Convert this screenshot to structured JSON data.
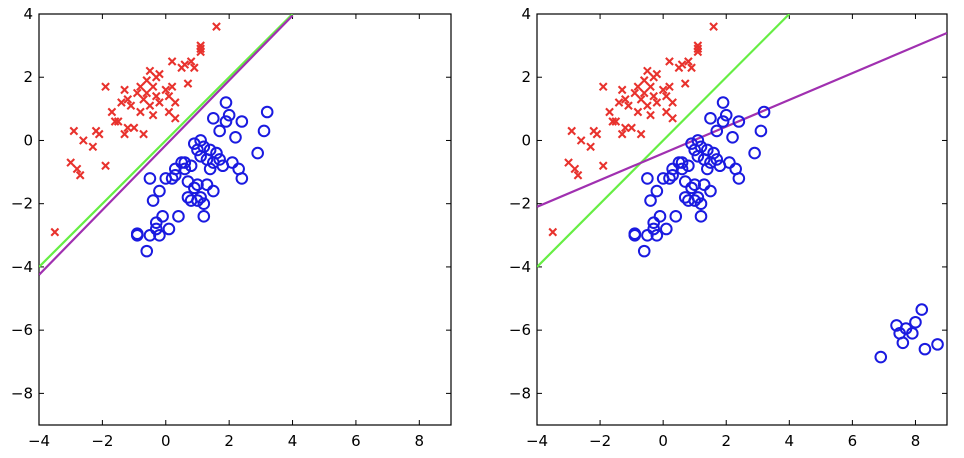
{
  "chart_data": [
    {
      "type": "scatter",
      "xlim": [
        -4,
        9
      ],
      "ylim": [
        -9,
        4
      ],
      "xticks": [
        -4,
        -2,
        0,
        2,
        4,
        6,
        8
      ],
      "yticks": [
        -8,
        -6,
        -4,
        -2,
        0,
        2,
        4
      ],
      "xtick_labels": [
        "−4",
        "−2",
        "0",
        "2",
        "4",
        "6",
        "8"
      ],
      "ytick_labels": [
        "−8",
        "−6",
        "−4",
        "−2",
        "0",
        "2",
        "4"
      ],
      "grid": false,
      "colors": {
        "class_a": "#e8322d",
        "class_b": "#1a1ae0",
        "green_line": "#66ee44",
        "purple_line": "#a030b0"
      },
      "series": [
        {
          "marker": "x",
          "color": "#e8322d",
          "points": [
            [
              -3.5,
              -2.9
            ],
            [
              -3.0,
              -0.7
            ],
            [
              -2.9,
              0.3
            ],
            [
              -2.8,
              -0.9
            ],
            [
              -2.7,
              -1.1
            ],
            [
              -2.6,
              0.0
            ],
            [
              -2.3,
              -0.2
            ],
            [
              -2.2,
              0.3
            ],
            [
              -2.1,
              0.2
            ],
            [
              -1.9,
              1.7
            ],
            [
              -1.9,
              -0.8
            ],
            [
              -1.7,
              0.9
            ],
            [
              -1.6,
              0.6
            ],
            [
              -1.5,
              0.6
            ],
            [
              -1.4,
              1.2
            ],
            [
              -1.3,
              1.6
            ],
            [
              -1.3,
              0.2
            ],
            [
              -1.2,
              1.3
            ],
            [
              -1.2,
              0.4
            ],
            [
              -1.1,
              1.1
            ],
            [
              -1.0,
              0.4
            ],
            [
              -0.9,
              1.5
            ],
            [
              -0.8,
              1.7
            ],
            [
              -0.8,
              0.9
            ],
            [
              -0.7,
              1.3
            ],
            [
              -0.7,
              0.2
            ],
            [
              -0.6,
              1.9
            ],
            [
              -0.6,
              1.5
            ],
            [
              -0.5,
              2.2
            ],
            [
              -0.5,
              1.1
            ],
            [
              -0.4,
              1.7
            ],
            [
              -0.4,
              0.8
            ],
            [
              -0.3,
              2.0
            ],
            [
              -0.3,
              1.4
            ],
            [
              -0.2,
              2.1
            ],
            [
              -0.2,
              1.2
            ],
            [
              0.0,
              1.6
            ],
            [
              0.1,
              1.4
            ],
            [
              0.1,
              0.9
            ],
            [
              0.2,
              2.5
            ],
            [
              0.2,
              1.7
            ],
            [
              0.3,
              1.2
            ],
            [
              0.3,
              0.7
            ],
            [
              0.5,
              2.3
            ],
            [
              0.6,
              2.4
            ],
            [
              0.7,
              1.8
            ],
            [
              0.8,
              2.5
            ],
            [
              0.9,
              2.3
            ],
            [
              1.1,
              3.0
            ],
            [
              1.1,
              2.9
            ],
            [
              1.1,
              2.8
            ],
            [
              1.6,
              3.6
            ]
          ]
        },
        {
          "marker": "circle",
          "color": "#1a1ae0",
          "points": [
            [
              -0.9,
              -3.0
            ],
            [
              -0.9,
              -2.95
            ],
            [
              -0.6,
              -3.5
            ],
            [
              -0.5,
              -1.2
            ],
            [
              -0.5,
              -3.0
            ],
            [
              -0.4,
              -1.9
            ],
            [
              -0.3,
              -2.6
            ],
            [
              -0.3,
              -2.8
            ],
            [
              -0.2,
              -1.6
            ],
            [
              -0.2,
              -3.0
            ],
            [
              -0.1,
              -2.4
            ],
            [
              0.0,
              -1.2
            ],
            [
              0.1,
              -2.8
            ],
            [
              0.2,
              -1.2
            ],
            [
              0.3,
              -1.1
            ],
            [
              0.3,
              -0.9
            ],
            [
              0.4,
              -2.4
            ],
            [
              0.5,
              -0.7
            ],
            [
              0.6,
              -0.7
            ],
            [
              0.6,
              -0.9
            ],
            [
              0.7,
              -1.8
            ],
            [
              0.7,
              -1.3
            ],
            [
              0.8,
              -0.8
            ],
            [
              0.8,
              -1.9
            ],
            [
              0.9,
              -0.1
            ],
            [
              0.9,
              -1.5
            ],
            [
              1.0,
              -0.3
            ],
            [
              1.0,
              -1.9
            ],
            [
              1.0,
              -1.4
            ],
            [
              1.1,
              -1.8
            ],
            [
              1.1,
              -0.5
            ],
            [
              1.1,
              0.0
            ],
            [
              1.2,
              -0.2
            ],
            [
              1.2,
              -2.0
            ],
            [
              1.2,
              -2.4
            ],
            [
              1.3,
              -0.6
            ],
            [
              1.3,
              -1.4
            ],
            [
              1.4,
              -0.9
            ],
            [
              1.4,
              -0.3
            ],
            [
              1.5,
              -0.7
            ],
            [
              1.5,
              -1.6
            ],
            [
              1.5,
              0.7
            ],
            [
              1.6,
              -0.4
            ],
            [
              1.7,
              -0.6
            ],
            [
              1.7,
              0.3
            ],
            [
              1.8,
              -0.8
            ],
            [
              1.9,
              0.6
            ],
            [
              1.9,
              1.2
            ],
            [
              2.0,
              0.8
            ],
            [
              2.1,
              -0.7
            ],
            [
              2.2,
              0.1
            ],
            [
              2.3,
              -0.9
            ],
            [
              2.4,
              0.6
            ],
            [
              2.4,
              -1.2
            ],
            [
              2.9,
              -0.4
            ],
            [
              3.1,
              0.3
            ],
            [
              3.2,
              0.9
            ]
          ]
        }
      ],
      "lines": [
        {
          "color": "#66ee44",
          "from": [
            -4,
            -4.0
          ],
          "to": [
            4,
            4.0
          ]
        },
        {
          "color": "#a030b0",
          "from": [
            -4,
            -4.25
          ],
          "to": [
            4,
            3.95
          ]
        }
      ]
    },
    {
      "type": "scatter",
      "xlim": [
        -4,
        9
      ],
      "ylim": [
        -9,
        4
      ],
      "xticks": [
        -4,
        -2,
        0,
        2,
        4,
        6,
        8
      ],
      "yticks": [
        -8,
        -6,
        -4,
        -2,
        0,
        2,
        4
      ],
      "xtick_labels": [
        "−4",
        "−2",
        "0",
        "2",
        "4",
        "6",
        "8"
      ],
      "ytick_labels": [
        "−8",
        "−6",
        "−4",
        "−2",
        "0",
        "2",
        "4"
      ],
      "grid": false,
      "colors": {
        "class_a": "#e8322d",
        "class_b": "#1a1ae0",
        "green_line": "#66ee44",
        "purple_line": "#a030b0"
      },
      "series": [
        {
          "marker": "x",
          "color": "#e8322d",
          "points": [
            [
              -3.5,
              -2.9
            ],
            [
              -3.0,
              -0.7
            ],
            [
              -2.9,
              0.3
            ],
            [
              -2.8,
              -0.9
            ],
            [
              -2.7,
              -1.1
            ],
            [
              -2.6,
              0.0
            ],
            [
              -2.3,
              -0.2
            ],
            [
              -2.2,
              0.3
            ],
            [
              -2.1,
              0.2
            ],
            [
              -1.9,
              1.7
            ],
            [
              -1.9,
              -0.8
            ],
            [
              -1.7,
              0.9
            ],
            [
              -1.6,
              0.6
            ],
            [
              -1.5,
              0.6
            ],
            [
              -1.4,
              1.2
            ],
            [
              -1.3,
              1.6
            ],
            [
              -1.3,
              0.2
            ],
            [
              -1.2,
              1.3
            ],
            [
              -1.2,
              0.4
            ],
            [
              -1.1,
              1.1
            ],
            [
              -1.0,
              0.4
            ],
            [
              -0.9,
              1.5
            ],
            [
              -0.8,
              1.7
            ],
            [
              -0.8,
              0.9
            ],
            [
              -0.7,
              1.3
            ],
            [
              -0.7,
              0.2
            ],
            [
              -0.6,
              1.9
            ],
            [
              -0.6,
              1.5
            ],
            [
              -0.5,
              2.2
            ],
            [
              -0.5,
              1.1
            ],
            [
              -0.4,
              1.7
            ],
            [
              -0.4,
              0.8
            ],
            [
              -0.3,
              2.0
            ],
            [
              -0.3,
              1.4
            ],
            [
              -0.2,
              2.1
            ],
            [
              -0.2,
              1.2
            ],
            [
              0.0,
              1.6
            ],
            [
              0.1,
              1.4
            ],
            [
              0.1,
              0.9
            ],
            [
              0.2,
              2.5
            ],
            [
              0.2,
              1.7
            ],
            [
              0.3,
              1.2
            ],
            [
              0.3,
              0.7
            ],
            [
              0.5,
              2.3
            ],
            [
              0.6,
              2.4
            ],
            [
              0.7,
              1.8
            ],
            [
              0.8,
              2.5
            ],
            [
              0.9,
              2.3
            ],
            [
              1.1,
              3.0
            ],
            [
              1.1,
              2.9
            ],
            [
              1.1,
              2.8
            ],
            [
              1.6,
              3.6
            ]
          ]
        },
        {
          "marker": "circle",
          "color": "#1a1ae0",
          "points": [
            [
              -0.9,
              -3.0
            ],
            [
              -0.9,
              -2.95
            ],
            [
              -0.6,
              -3.5
            ],
            [
              -0.5,
              -1.2
            ],
            [
              -0.5,
              -3.0
            ],
            [
              -0.4,
              -1.9
            ],
            [
              -0.3,
              -2.6
            ],
            [
              -0.3,
              -2.8
            ],
            [
              -0.2,
              -1.6
            ],
            [
              -0.2,
              -3.0
            ],
            [
              -0.1,
              -2.4
            ],
            [
              0.0,
              -1.2
            ],
            [
              0.1,
              -2.8
            ],
            [
              0.2,
              -1.2
            ],
            [
              0.3,
              -1.1
            ],
            [
              0.3,
              -0.9
            ],
            [
              0.4,
              -2.4
            ],
            [
              0.5,
              -0.7
            ],
            [
              0.6,
              -0.7
            ],
            [
              0.6,
              -0.9
            ],
            [
              0.7,
              -1.8
            ],
            [
              0.7,
              -1.3
            ],
            [
              0.8,
              -0.8
            ],
            [
              0.8,
              -1.9
            ],
            [
              0.9,
              -0.1
            ],
            [
              0.9,
              -1.5
            ],
            [
              1.0,
              -0.3
            ],
            [
              1.0,
              -1.9
            ],
            [
              1.0,
              -1.4
            ],
            [
              1.1,
              -1.8
            ],
            [
              1.1,
              -0.5
            ],
            [
              1.1,
              0.0
            ],
            [
              1.2,
              -0.2
            ],
            [
              1.2,
              -2.0
            ],
            [
              1.2,
              -2.4
            ],
            [
              1.3,
              -0.6
            ],
            [
              1.3,
              -1.4
            ],
            [
              1.4,
              -0.9
            ],
            [
              1.4,
              -0.3
            ],
            [
              1.5,
              -0.7
            ],
            [
              1.5,
              -1.6
            ],
            [
              1.5,
              0.7
            ],
            [
              1.6,
              -0.4
            ],
            [
              1.7,
              -0.6
            ],
            [
              1.7,
              0.3
            ],
            [
              1.8,
              -0.8
            ],
            [
              1.9,
              0.6
            ],
            [
              1.9,
              1.2
            ],
            [
              2.0,
              0.8
            ],
            [
              2.1,
              -0.7
            ],
            [
              2.2,
              0.1
            ],
            [
              2.3,
              -0.9
            ],
            [
              2.4,
              0.6
            ],
            [
              2.4,
              -1.2
            ],
            [
              2.9,
              -0.4
            ],
            [
              3.1,
              0.3
            ],
            [
              3.2,
              0.9
            ],
            [
              6.9,
              -6.85
            ],
            [
              7.4,
              -5.85
            ],
            [
              7.5,
              -6.1
            ],
            [
              7.6,
              -6.4
            ],
            [
              7.7,
              -5.95
            ],
            [
              7.9,
              -6.1
            ],
            [
              8.0,
              -5.75
            ],
            [
              8.2,
              -5.35
            ],
            [
              8.3,
              -6.6
            ],
            [
              8.7,
              -6.45
            ]
          ]
        }
      ],
      "lines": [
        {
          "color": "#66ee44",
          "from": [
            -4,
            -4.0
          ],
          "to": [
            4,
            4.0
          ]
        },
        {
          "color": "#a030b0",
          "from": [
            -4,
            -2.1
          ],
          "to": [
            9,
            3.4
          ]
        }
      ]
    }
  ]
}
